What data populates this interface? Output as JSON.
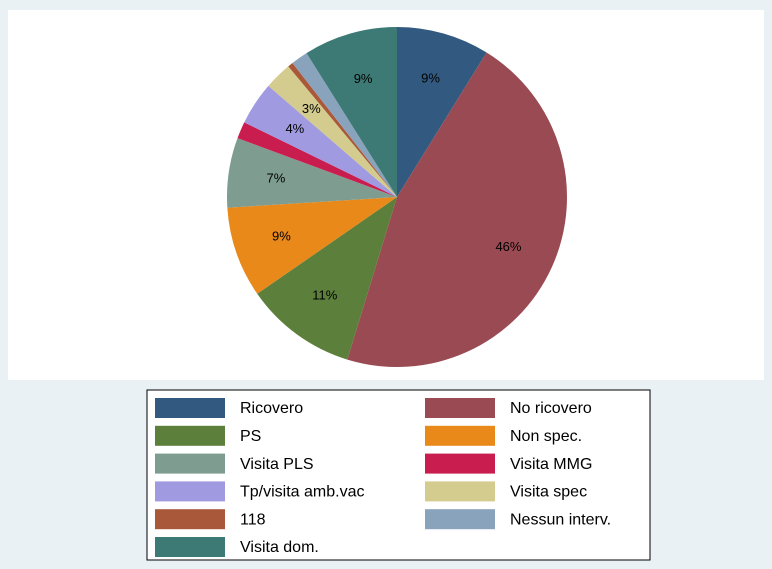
{
  "chart_data": {
    "type": "pie",
    "categories": [
      "Ricovero",
      "No ricovero",
      "PS",
      "Non spec.",
      "Visita PLS",
      "Visita MMG",
      "Tp/visita amb.vac",
      "Visita spec",
      "118",
      "Nessun interv.",
      "Visita dom."
    ],
    "values": [
      8.8,
      45.7,
      10.6,
      8.6,
      6.6,
      1.6,
      4.1,
      2.6,
      0.5,
      1.6,
      8.9
    ],
    "value_labels": [
      "9%",
      "46%",
      "11%",
      "9%",
      "7%",
      null,
      "4%",
      "3%",
      null,
      null,
      "9%"
    ],
    "colors": [
      "#325a80",
      "#9a4a52",
      "#5d7f3c",
      "#e8891a",
      "#7f9c90",
      "#c91d4f",
      "#a09be0",
      "#d4cc8e",
      "#a9583a",
      "#8aa3bd",
      "#3d7a75"
    ],
    "legend_columns": 2
  }
}
